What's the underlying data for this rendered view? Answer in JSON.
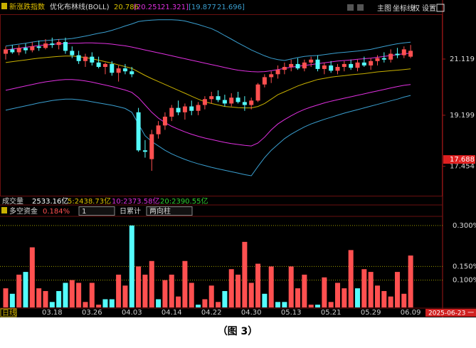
{
  "header": {
    "index_name": "新涨跌指数",
    "indicator": "优化布林线(BOLL)",
    "mid": "20.786",
    "inner": "[20.251",
    "inner_hi": "21.321]",
    "outer": "[19.877",
    "outer_hi": "21.696]",
    "toolbar": [
      "主图",
      "坐标线",
      "权",
      "设置"
    ]
  },
  "volume_row": {
    "label": "成交量",
    "total": "2533.16亿",
    "ma5": "5:2438.73亿",
    "ma10": "10:2373.58亿",
    "ma20": "20:2390.55亿"
  },
  "fund_row": {
    "label": "多空资金",
    "value": "0.184%",
    "period": "1",
    "mode": "日累计",
    "style": "两向柱"
  },
  "footer": {
    "period": "日线",
    "date": "2025-06-23 一"
  },
  "caption": "（图 3）",
  "chart_data": [
    {
      "type": "candlestick",
      "up_color": "#ff5050",
      "down_color": "#54fcfc",
      "ylim": [
        16.45,
        22.65
      ],
      "yticks": [
        17.454,
        19.199,
        21.119
      ],
      "price_marker": 17.688,
      "open": [
        21.3,
        21.45,
        21.35,
        21.5,
        21.42,
        21.55,
        21.5,
        21.65,
        21.6,
        21.7,
        21.4,
        21.25,
        21.05,
        21.2,
        21.0,
        20.85,
        20.95,
        20.65,
        20.8,
        20.7,
        19.3,
        18.0,
        17.7,
        18.55,
        18.85,
        19.15,
        19.45,
        19.3,
        19.5,
        19.35,
        19.55,
        19.75,
        19.85,
        19.72,
        19.6,
        19.8,
        19.65,
        19.55,
        19.7,
        20.25,
        20.5,
        20.6,
        20.75,
        20.85,
        20.95,
        20.8,
        21.0,
        21.1,
        20.78,
        20.9,
        20.72,
        20.85,
        20.95,
        20.82,
        21.0,
        20.9,
        21.05,
        21.15,
        21.1,
        21.3,
        21.25,
        21.2
      ],
      "high": [
        21.55,
        21.6,
        21.6,
        21.65,
        21.7,
        21.75,
        21.8,
        21.85,
        21.8,
        21.85,
        21.55,
        21.4,
        21.3,
        21.35,
        21.2,
        21.0,
        21.05,
        20.9,
        20.95,
        20.85,
        19.45,
        18.35,
        18.7,
        19.0,
        19.3,
        19.55,
        19.7,
        19.6,
        19.7,
        19.65,
        19.85,
        20.0,
        20.05,
        19.9,
        19.95,
        20.0,
        19.85,
        19.8,
        20.3,
        20.6,
        20.7,
        20.9,
        21.0,
        21.1,
        21.15,
        21.1,
        21.2,
        21.25,
        21.0,
        21.05,
        20.95,
        21.05,
        21.1,
        21.1,
        21.2,
        21.15,
        21.25,
        21.35,
        21.45,
        21.5,
        21.55,
        21.6
      ],
      "low": [
        21.1,
        21.3,
        21.25,
        21.3,
        21.35,
        21.4,
        21.45,
        21.5,
        21.45,
        21.3,
        21.15,
        20.95,
        20.85,
        20.9,
        20.8,
        20.6,
        20.55,
        20.35,
        20.6,
        20.5,
        17.95,
        17.75,
        17.3,
        18.4,
        18.7,
        19.0,
        19.2,
        19.05,
        19.2,
        19.2,
        19.4,
        19.6,
        19.65,
        19.5,
        19.5,
        19.6,
        19.35,
        19.4,
        19.65,
        20.15,
        20.3,
        20.45,
        20.6,
        20.7,
        20.75,
        20.7,
        20.85,
        20.7,
        20.6,
        20.65,
        20.6,
        20.7,
        20.75,
        20.7,
        20.85,
        20.75,
        20.9,
        21.0,
        21.0,
        21.15,
        21.15,
        21.15
      ],
      "close": [
        21.45,
        21.35,
        21.5,
        21.42,
        21.55,
        21.5,
        21.65,
        21.6,
        21.7,
        21.4,
        21.25,
        21.05,
        21.2,
        21.0,
        20.85,
        20.95,
        20.65,
        20.8,
        20.7,
        20.6,
        18.0,
        17.95,
        18.55,
        18.85,
        19.15,
        19.45,
        19.3,
        19.5,
        19.35,
        19.55,
        19.75,
        19.85,
        19.72,
        19.6,
        19.8,
        19.65,
        19.55,
        19.7,
        20.25,
        20.5,
        20.6,
        20.75,
        20.85,
        20.95,
        20.8,
        21.0,
        21.1,
        20.78,
        20.9,
        20.72,
        20.85,
        20.95,
        20.82,
        21.0,
        20.9,
        21.05,
        21.15,
        21.1,
        21.3,
        21.25,
        21.45,
        21.4
      ],
      "series": [
        {
          "color": "#3a9fd0",
          "values": [
            21.56,
            21.6,
            21.63,
            21.66,
            21.7,
            21.73,
            21.75,
            21.77,
            21.79,
            21.8,
            21.82,
            21.86,
            21.9,
            21.95,
            22.0,
            22.04,
            22.1,
            22.17,
            22.25,
            22.32,
            22.4,
            22.43,
            22.45,
            22.46,
            22.46,
            22.46,
            22.45,
            22.42,
            22.36,
            22.3,
            22.23,
            22.16,
            22.05,
            21.92,
            21.8,
            21.67,
            21.55,
            21.43,
            21.33,
            21.23,
            21.15,
            21.1,
            21.07,
            21.12,
            21.17,
            21.21,
            21.23,
            21.24,
            21.27,
            21.3,
            21.33,
            21.35,
            21.37,
            21.39,
            21.42,
            21.45,
            21.5,
            21.55,
            21.6,
            21.64,
            21.67,
            21.696
          ]
        },
        {
          "color": "#e030e0",
          "values": [
            21.43,
            21.46,
            21.49,
            21.52,
            21.55,
            21.58,
            21.6,
            21.62,
            21.64,
            21.65,
            21.66,
            21.66,
            21.67,
            21.67,
            21.66,
            21.65,
            21.63,
            21.6,
            21.57,
            21.53,
            21.48,
            21.43,
            21.38,
            21.33,
            21.28,
            21.23,
            21.18,
            21.13,
            21.08,
            21.03,
            20.98,
            20.93,
            20.88,
            20.83,
            20.78,
            20.74,
            20.71,
            20.69,
            20.68,
            20.69,
            20.72,
            20.76,
            20.8,
            20.84,
            20.87,
            20.9,
            20.93,
            20.96,
            20.99,
            21.02,
            21.05,
            21.07,
            21.09,
            21.11,
            21.13,
            21.15,
            21.18,
            21.21,
            21.24,
            21.27,
            21.3,
            21.321
          ]
        },
        {
          "color": "#c8b000",
          "values": [
            21.0,
            21.03,
            21.06,
            21.09,
            21.12,
            21.15,
            21.17,
            21.19,
            21.21,
            21.22,
            21.22,
            21.2,
            21.17,
            21.13,
            21.08,
            21.03,
            20.98,
            20.92,
            20.86,
            20.8,
            20.68,
            20.56,
            20.45,
            20.35,
            20.25,
            20.15,
            20.05,
            19.95,
            19.85,
            19.75,
            19.66,
            19.6,
            19.55,
            19.5,
            19.48,
            19.46,
            19.45,
            19.45,
            19.5,
            19.6,
            19.75,
            19.9,
            20.0,
            20.1,
            20.2,
            20.28,
            20.35,
            20.42,
            20.46,
            20.5,
            20.53,
            20.55,
            20.58,
            20.6,
            20.62,
            20.65,
            20.68,
            20.7,
            20.72,
            20.74,
            20.76,
            20.786
          ]
        },
        {
          "color": "#e030e0",
          "values": [
            20.05,
            20.1,
            20.15,
            20.2,
            20.25,
            20.3,
            20.34,
            20.37,
            20.4,
            20.42,
            20.42,
            20.4,
            20.37,
            20.33,
            20.28,
            20.23,
            20.18,
            20.12,
            20.06,
            19.98,
            19.8,
            19.55,
            19.3,
            19.1,
            18.95,
            18.82,
            18.72,
            18.63,
            18.55,
            18.48,
            18.42,
            18.37,
            18.32,
            18.27,
            18.23,
            18.2,
            18.17,
            18.15,
            18.25,
            18.45,
            18.7,
            18.9,
            19.05,
            19.18,
            19.3,
            19.4,
            19.48,
            19.55,
            19.62,
            19.68,
            19.73,
            19.78,
            19.83,
            19.88,
            19.93,
            19.98,
            20.03,
            20.08,
            20.13,
            20.18,
            20.22,
            20.251
          ]
        },
        {
          "color": "#3a9fd0",
          "values": [
            19.37,
            19.42,
            19.47,
            19.52,
            19.57,
            19.62,
            19.66,
            19.7,
            19.73,
            19.75,
            19.75,
            19.73,
            19.7,
            19.66,
            19.62,
            19.58,
            19.54,
            19.49,
            19.43,
            19.3,
            18.9,
            18.5,
            18.3,
            18.15,
            18.0,
            17.88,
            17.78,
            17.69,
            17.61,
            17.54,
            17.48,
            17.42,
            17.37,
            17.32,
            17.27,
            17.22,
            17.17,
            17.13,
            17.45,
            17.75,
            18.0,
            18.2,
            18.4,
            18.55,
            18.68,
            18.8,
            18.9,
            18.98,
            19.06,
            19.13,
            19.2,
            19.27,
            19.33,
            19.39,
            19.45,
            19.51,
            19.57,
            19.63,
            19.69,
            19.75,
            19.82,
            19.877
          ]
        }
      ]
    },
    {
      "type": "bar",
      "grid": true,
      "grid_color": "#9a9a00",
      "categories": [
        null,
        null,
        null,
        null,
        null,
        null,
        null,
        "03.18",
        null,
        null,
        null,
        null,
        null,
        "03.26",
        null,
        null,
        null,
        null,
        null,
        "04.03",
        null,
        null,
        null,
        null,
        null,
        "04.14",
        null,
        null,
        null,
        null,
        null,
        "04.22",
        null,
        null,
        null,
        null,
        null,
        "04.30",
        null,
        null,
        null,
        null,
        null,
        "05.13",
        null,
        null,
        null,
        null,
        null,
        "05.21",
        null,
        null,
        null,
        null,
        null,
        "05.29",
        null,
        null,
        null,
        null,
        null,
        "06.09"
      ],
      "values": [
        0.07,
        0.05,
        0.12,
        0.13,
        0.22,
        0.07,
        0.06,
        0.02,
        0.06,
        0.09,
        0.1,
        0.09,
        0.02,
        0.09,
        0.01,
        0.03,
        0.03,
        0.12,
        0.08,
        0.3,
        0.15,
        0.12,
        0.17,
        0.03,
        0.1,
        0.12,
        0.04,
        0.17,
        0.09,
        0.01,
        0.03,
        0.08,
        0.02,
        0.06,
        0.14,
        0.12,
        0.24,
        0.09,
        0.16,
        0.05,
        0.15,
        0.02,
        0.02,
        0.15,
        0.07,
        0.12,
        0.01,
        0.01,
        0.11,
        0.02,
        0.09,
        0.07,
        0.21,
        0.07,
        0.14,
        0.13,
        0.08,
        0.06,
        0.04,
        0.13,
        0.05,
        0.19
      ],
      "colors": [
        "#ff5050",
        "#54fcfc",
        "#ff5050",
        "#54fcfc",
        "#ff5050",
        "#ff5050",
        "#ff5050",
        "#54fcfc",
        "#54fcfc",
        "#54fcfc",
        "#ff5050",
        "#ff5050",
        "#ff5050",
        "#ff5050",
        "#ff5050",
        "#54fcfc",
        "#54fcfc",
        "#ff5050",
        "#ff5050",
        "#54fcfc",
        "#ff5050",
        "#ff5050",
        "#ff5050",
        "#54fcfc",
        "#ff5050",
        "#ff5050",
        "#ff5050",
        "#ff5050",
        "#ff5050",
        "#54fcfc",
        "#ff5050",
        "#ff5050",
        "#ff5050",
        "#54fcfc",
        "#ff5050",
        "#ff5050",
        "#ff5050",
        "#ff5050",
        "#ff5050",
        "#54fcfc",
        "#ff5050",
        "#54fcfc",
        "#54fcfc",
        "#ff5050",
        "#ff5050",
        "#ff5050",
        "#ff5050",
        "#54fcfc",
        "#ff5050",
        "#ff5050",
        "#ff5050",
        "#ff5050",
        "#ff5050",
        "#54fcfc",
        "#ff5050",
        "#ff5050",
        "#ff5050",
        "#ff5050",
        "#ff5050",
        "#ff5050",
        "#ff5050",
        "#ff5050"
      ],
      "ylim": [
        0,
        0.31
      ],
      "yticks": [
        {
          "value": 0.1,
          "label": "0.100%"
        },
        {
          "value": 0.15,
          "label": "0.150%"
        },
        {
          "value": 0.3,
          "label": "0.300%"
        }
      ]
    }
  ]
}
